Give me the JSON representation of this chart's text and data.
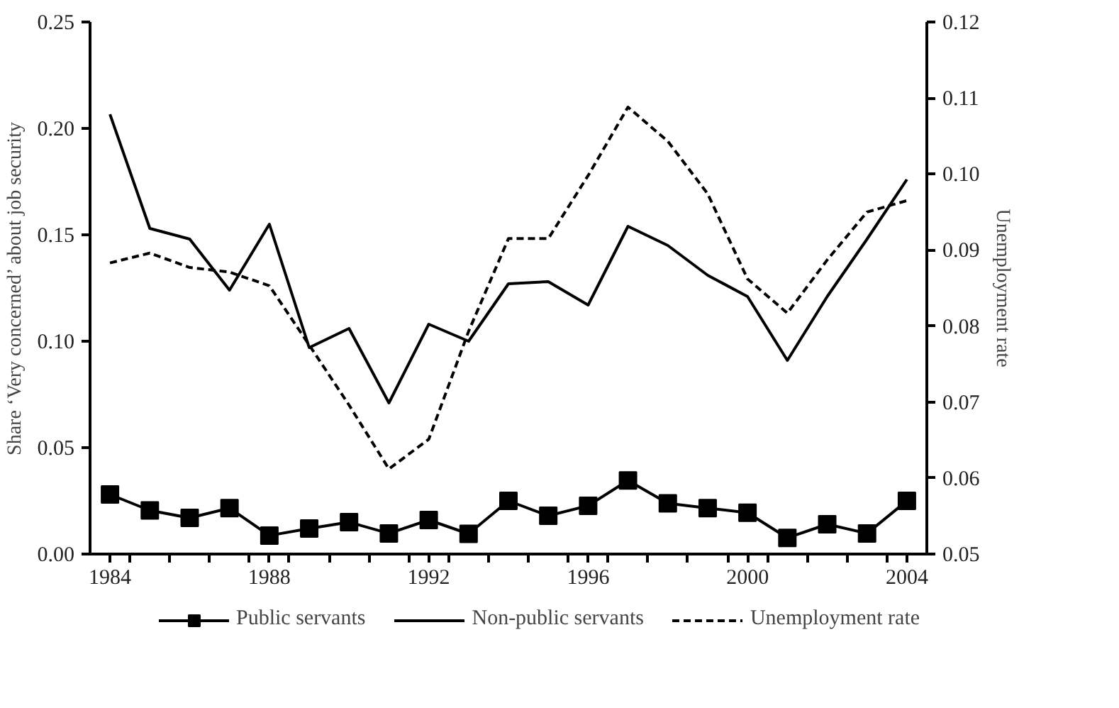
{
  "chart_data": {
    "type": "line",
    "ylabel": "Share ‘Very concerned’ about job security",
    "y2label": "Unemployment rate",
    "x": [
      1984,
      1985,
      1986,
      1987,
      1988,
      1989,
      1990,
      1991,
      1992,
      1993,
      1994,
      1995,
      1996,
      1997,
      1998,
      1999,
      2000,
      2001,
      2002,
      2003,
      2004
    ],
    "xlim": [
      1983.5,
      2004.5
    ],
    "xticks": [
      1984,
      1988,
      1992,
      1996,
      2000,
      2004,
      {
        "value": 1984.5,
        "label": null
      },
      {
        "value": 1985.5,
        "label": null
      },
      {
        "value": 1986.5,
        "label": null
      },
      {
        "value": 1987.5,
        "label": null
      },
      {
        "value": 1988.5,
        "label": null
      },
      {
        "value": 1989.5,
        "label": null
      },
      {
        "value": 1990.5,
        "label": null
      },
      {
        "value": 1991.5,
        "label": null
      },
      {
        "value": 1992.5,
        "label": null
      },
      {
        "value": 1993.5,
        "label": null
      },
      {
        "value": 1994.5,
        "label": null
      },
      {
        "value": 1995.5,
        "label": null
      },
      {
        "value": 1996.5,
        "label": null
      },
      {
        "value": 1997.5,
        "label": null
      },
      {
        "value": 1998.5,
        "label": null
      },
      {
        "value": 1999.5,
        "label": null
      },
      {
        "value": 2000.5,
        "label": null
      },
      {
        "value": 2001.5,
        "label": null
      },
      {
        "value": 2002.5,
        "label": null
      },
      {
        "value": 2003.5,
        "label": null
      }
    ],
    "ylim": [
      0,
      0.25
    ],
    "yticks": [
      {
        "value": 0,
        "label": "0.00"
      },
      {
        "value": 0.05,
        "label": "0.05"
      },
      {
        "value": 0.1,
        "label": "0.10"
      },
      {
        "value": 0.15,
        "label": "0.15"
      },
      {
        "value": 0.2,
        "label": "0.20"
      },
      {
        "value": 0.25,
        "label": "0.25"
      }
    ],
    "y2lim": [
      0.05,
      0.12
    ],
    "y2ticks": [
      {
        "value": 0.05,
        "label": "0.05"
      },
      {
        "value": 0.06,
        "label": "0.06"
      },
      {
        "value": 0.07,
        "label": "0.07"
      },
      {
        "value": 0.08,
        "label": "0.08"
      },
      {
        "value": 0.09,
        "label": "0.09"
      },
      {
        "value": 0.1,
        "label": "0.10"
      },
      {
        "value": 0.11,
        "label": "0.11"
      },
      {
        "value": 0.12,
        "label": "0.12"
      }
    ],
    "legend": "bottom",
    "series": [
      {
        "name": "Public servants",
        "color": "#000000",
        "marker": "square",
        "line_style": "solid",
        "values": [
          0.028,
          0.0205,
          0.017,
          0.0216,
          0.0087,
          0.012,
          0.015,
          0.0097,
          0.016,
          0.0095,
          0.025,
          0.018,
          0.0227,
          0.0346,
          0.0238,
          0.0216,
          0.0194,
          0.0076,
          0.014,
          0.0097,
          0.025
        ]
      },
      {
        "name": "Non-public servants",
        "color": "#000000",
        "marker": "none",
        "line_style": "solid",
        "values": [
          0.2066,
          0.153,
          0.148,
          0.124,
          0.155,
          0.097,
          0.106,
          0.071,
          0.108,
          0.1,
          0.127,
          0.128,
          0.117,
          0.154,
          0.145,
          0.131,
          0.121,
          0.091,
          0.121,
          0.148,
          0.176
        ]
      },
      {
        "name": "Unemployment rate",
        "color": "#000000",
        "marker": "none",
        "line_style": "dashed",
        "axis": "y2",
        "values": [
          0.0883,
          0.0896,
          0.0877,
          0.0871,
          0.0853,
          0.0775,
          0.0696,
          0.0612,
          0.0651,
          0.0793,
          0.0915,
          0.0915,
          0.0998,
          0.1088,
          0.1043,
          0.0974,
          0.0862,
          0.0817,
          0.0887,
          0.095,
          0.0965
        ]
      }
    ]
  }
}
